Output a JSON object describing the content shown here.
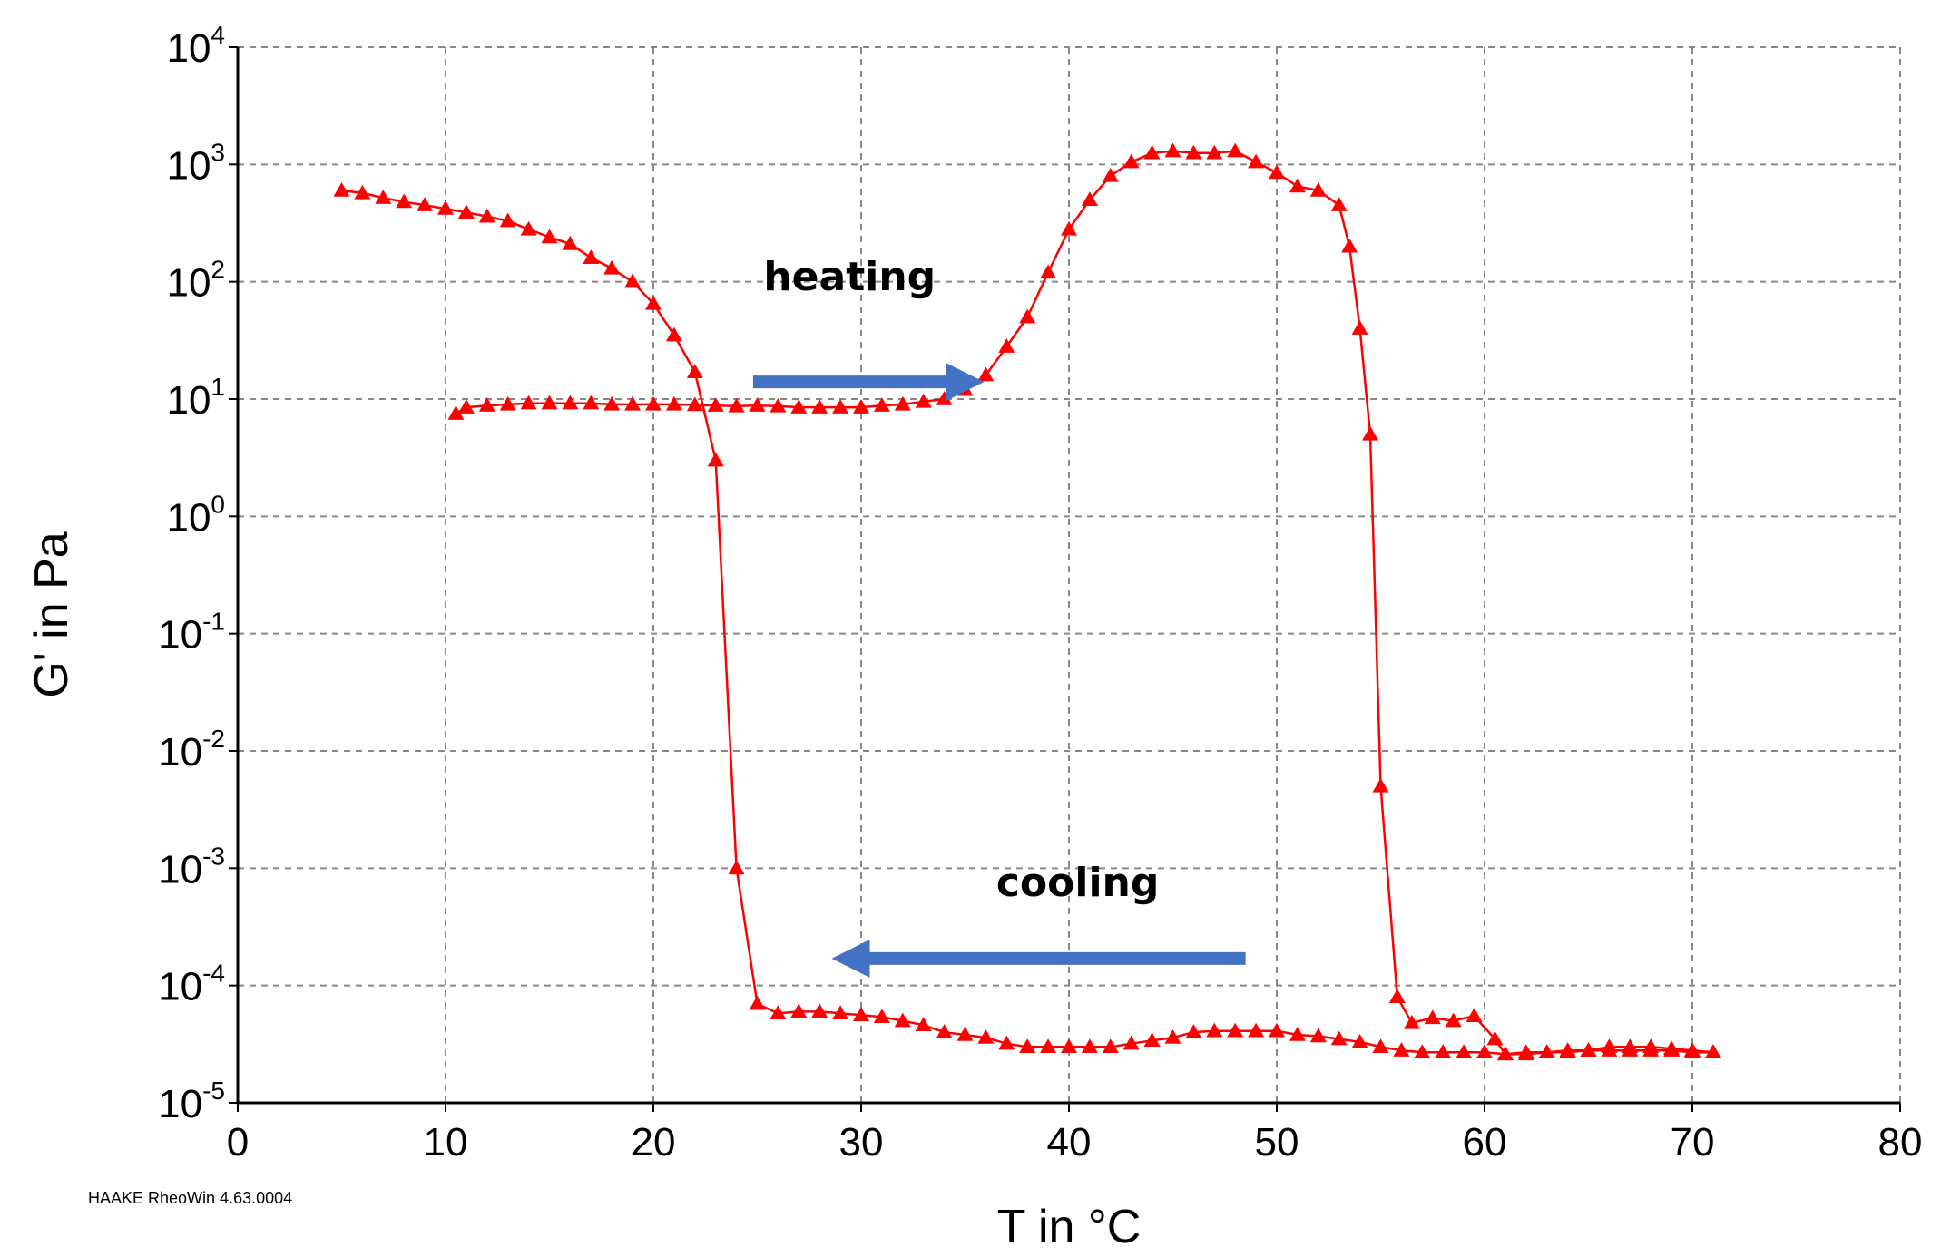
{
  "chart_data": {
    "type": "line",
    "xlabel": "T in °C",
    "ylabel": "G' in Pa",
    "xlim": [
      0,
      80
    ],
    "ylim": [
      1e-05,
      10000.0
    ],
    "y_scale": "log",
    "grid": true,
    "x_ticks": [
      "0",
      "10",
      "20",
      "30",
      "40",
      "50",
      "60",
      "70",
      "80"
    ],
    "y_ticks": [
      {
        "base": "10",
        "exp": "4"
      },
      {
        "base": "10",
        "exp": "3"
      },
      {
        "base": "10",
        "exp": "2"
      },
      {
        "base": "10",
        "exp": "1"
      },
      {
        "base": "10",
        "exp": "0"
      },
      {
        "base": "10",
        "exp": "-1"
      },
      {
        "base": "10",
        "exp": "-2"
      },
      {
        "base": "10",
        "exp": "-3"
      },
      {
        "base": "10",
        "exp": "-4"
      },
      {
        "base": "10",
        "exp": "-5"
      }
    ],
    "annotations": [
      {
        "text": "heating",
        "arrow_direction": "right"
      },
      {
        "text": "cooling",
        "arrow_direction": "left"
      }
    ],
    "credit": "HAAKE RheoWin 4.63.0004",
    "colors": {
      "series": "#ff0000",
      "arrow": "#4472c4",
      "grid": "#888888"
    },
    "series": [
      {
        "marker": "triangle",
        "x": [
          5,
          6,
          7,
          8,
          9,
          10,
          11,
          12,
          13,
          14,
          15,
          16,
          17,
          18,
          19,
          20,
          21,
          22,
          23,
          24,
          25,
          26,
          27,
          28,
          29,
          30,
          31,
          32,
          33,
          34,
          35,
          36,
          37,
          38,
          39,
          40,
          41,
          42,
          43,
          44,
          45,
          46,
          47,
          48,
          49,
          50,
          51,
          52,
          53,
          54,
          55,
          56,
          57,
          58,
          59,
          60,
          61,
          62,
          63,
          64,
          65,
          66,
          67,
          68,
          69,
          70,
          71
        ],
        "y": [
          600,
          570,
          520,
          480,
          450,
          420,
          390,
          360,
          330,
          280,
          240,
          210,
          160,
          130,
          100,
          65,
          35,
          17,
          3,
          0.001,
          7e-05,
          5.8e-05,
          6e-05,
          6e-05,
          5.8e-05,
          5.6e-05,
          5.4e-05,
          5e-05,
          4.6e-05,
          4e-05,
          3.8e-05,
          3.6e-05,
          3.2e-05,
          3e-05,
          3e-05,
          3e-05,
          3e-05,
          3e-05,
          3.2e-05,
          3.4e-05,
          3.6e-05,
          4e-05,
          4.1e-05,
          4.1e-05,
          4.1e-05,
          4.1e-05,
          3.8e-05,
          3.7e-05,
          3.5e-05,
          3.3e-05,
          3e-05,
          2.8e-05,
          2.7e-05,
          2.7e-05,
          2.7e-05,
          2.7e-05,
          2.6e-05,
          2.7e-05,
          2.7e-05,
          2.7e-05,
          2.8e-05,
          2.8e-05,
          2.8e-05,
          2.8e-05,
          2.8e-05,
          2.7e-05,
          2.7e-05
        ]
      },
      {
        "marker": "triangle",
        "x": [
          71,
          70,
          69,
          68,
          67,
          66,
          65,
          64,
          63,
          62,
          61,
          60.5,
          59.5,
          58.5,
          57.5,
          56.5,
          55.8,
          55,
          54.5,
          54,
          53.5,
          53,
          52,
          51,
          50,
          49,
          48,
          47,
          46,
          45,
          44,
          43,
          42,
          41,
          40,
          39,
          38,
          37,
          36,
          35,
          34,
          33,
          32,
          31,
          30,
          29,
          28,
          27,
          26,
          25,
          24,
          23,
          22,
          21,
          20,
          19,
          18,
          17,
          16,
          15,
          14,
          13,
          12,
          11,
          10.5
        ],
        "y": [
          2.7e-05,
          2.8e-05,
          2.9e-05,
          3e-05,
          3e-05,
          3e-05,
          2.8e-05,
          2.8e-05,
          2.7e-05,
          2.6e-05,
          2.6e-05,
          3.5e-05,
          5.5e-05,
          5e-05,
          5.3e-05,
          4.8e-05,
          8e-05,
          0.005,
          5,
          40,
          200,
          450,
          600,
          650,
          850,
          1050,
          1300,
          1250,
          1250,
          1300,
          1250,
          1050,
          800,
          500,
          280,
          120,
          50,
          28,
          16,
          12,
          10,
          9.5,
          9,
          8.8,
          8.5,
          8.5,
          8.5,
          8.5,
          8.7,
          8.8,
          8.7,
          8.8,
          8.9,
          9,
          9,
          9,
          9,
          9.2,
          9.2,
          9.2,
          9.2,
          9,
          8.8,
          8.5,
          7.5
        ]
      }
    ]
  }
}
